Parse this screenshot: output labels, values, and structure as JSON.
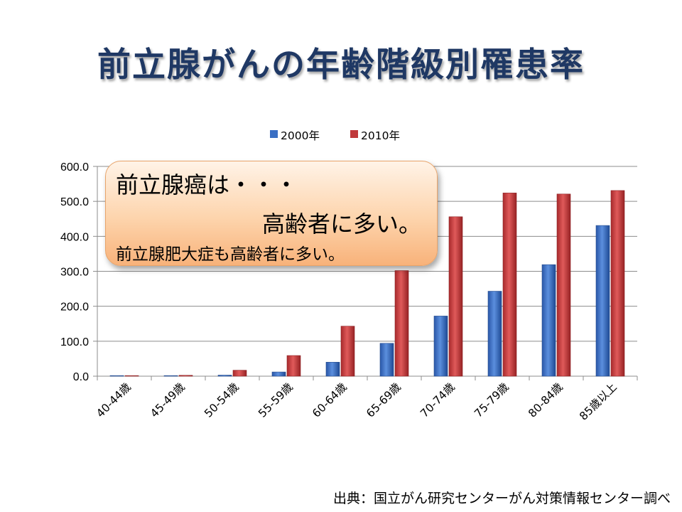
{
  "title": "前立腺がんの年齢階級別罹患率",
  "callout": {
    "line1": "前立腺癌は・・・",
    "line2": "高齢者に多い。",
    "line3": "前立腺肥大症も高齢者に多い。"
  },
  "source": "出典：国立がん研究センターがん対策情報センター調べ",
  "chart_data": {
    "type": "bar",
    "title": "",
    "xlabel": "",
    "ylabel": "",
    "categories": [
      "40-44歳",
      "45-49歳",
      "50-54歳",
      "55-59歳",
      "60-64歳",
      "65-69歳",
      "70-74歳",
      "75-79歳",
      "80-84歳",
      "85歳以上"
    ],
    "series": [
      {
        "name": "2000年",
        "color": "#3a6fc4",
        "values": [
          0.4,
          0.8,
          3.0,
          12.0,
          40.0,
          94.0,
          172.0,
          243.0,
          319.0,
          431.0
        ]
      },
      {
        "name": "2010年",
        "color": "#c0393b",
        "values": [
          0.5,
          2.5,
          17.0,
          59.0,
          143.0,
          302.0,
          456.0,
          524.0,
          521.0,
          531.0
        ]
      }
    ],
    "ylim": [
      0,
      600
    ],
    "yticks": [
      "0.0",
      "100.0",
      "200.0",
      "300.0",
      "400.0",
      "500.0",
      "600.0"
    ],
    "grid": true,
    "legend_position": "top"
  }
}
